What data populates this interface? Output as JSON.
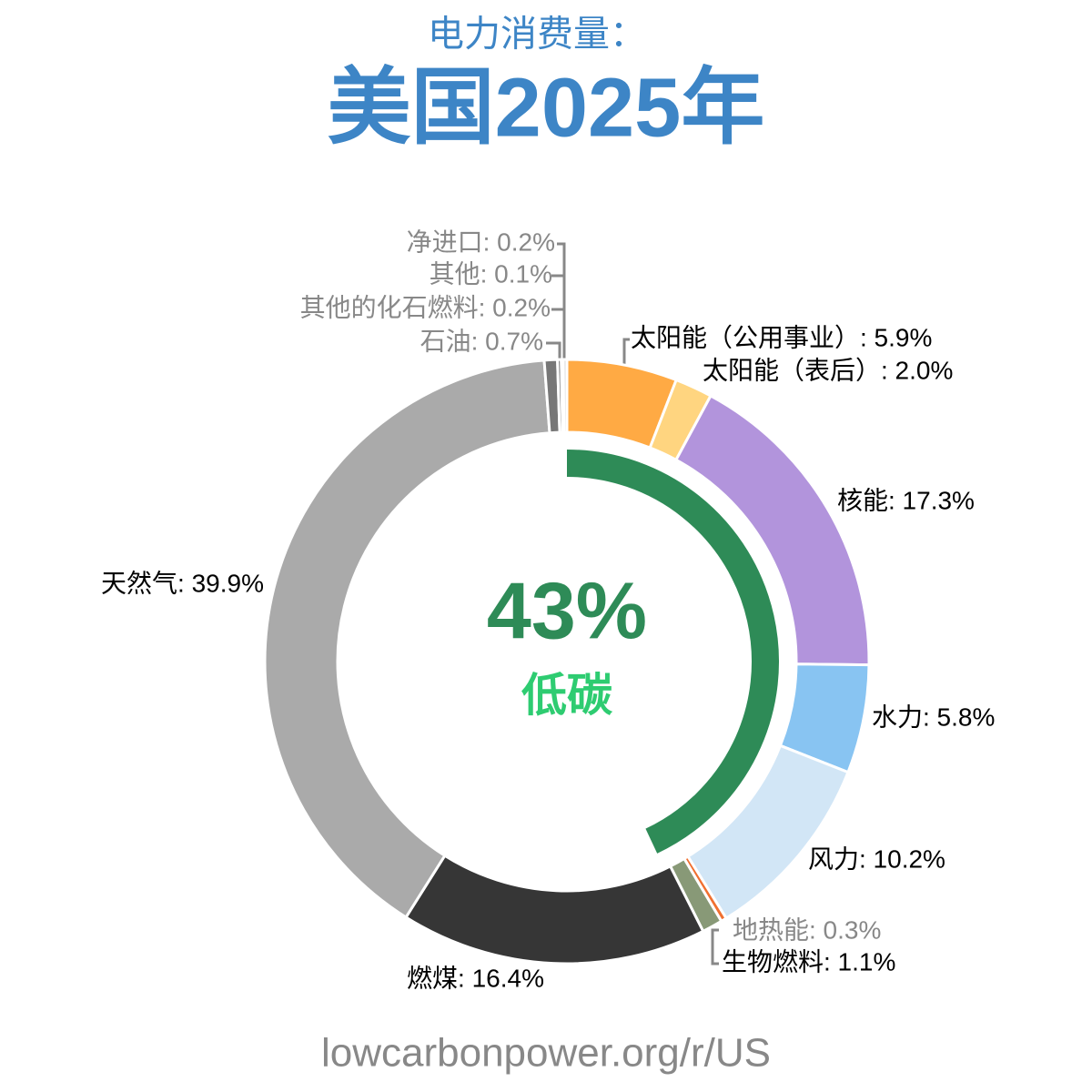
{
  "chart_data": {
    "type": "donut",
    "subtitle": "电力消费量：",
    "title": "美国2025年",
    "labels": [
      "太阳能（公用事业）: 5.9%",
      "太阳能（表后）: 2.0%",
      "核能: 17.3%",
      "水力: 5.8%",
      "风力: 10.2%",
      "地热能: 0.3%",
      "生物燃料: 1.1%",
      "燃煤: 16.4%",
      "天然气: 39.9%",
      "石油: 0.7%",
      "其他的化石燃料: 0.2%",
      "其他: 0.1%",
      "净进口: 0.2%"
    ],
    "values": [
      5.9,
      2.0,
      17.3,
      5.8,
      10.2,
      0.3,
      1.1,
      16.4,
      39.9,
      0.7,
      0.2,
      0.1,
      0.2
    ],
    "colors": [
      "#ffaa44",
      "#ffd580",
      "#b294dc",
      "#88c4f2",
      "#d2e6f6",
      "#f07030",
      "#889977",
      "#363636",
      "#aaaaaa",
      "#777777",
      "#777777",
      "#888888",
      "#dddddd"
    ],
    "low_carbon": {
      "value": 43,
      "label": "43%",
      "name": "低碳",
      "color": "#2e8b57"
    },
    "source": "lowcarbonpower.org/r/US"
  }
}
